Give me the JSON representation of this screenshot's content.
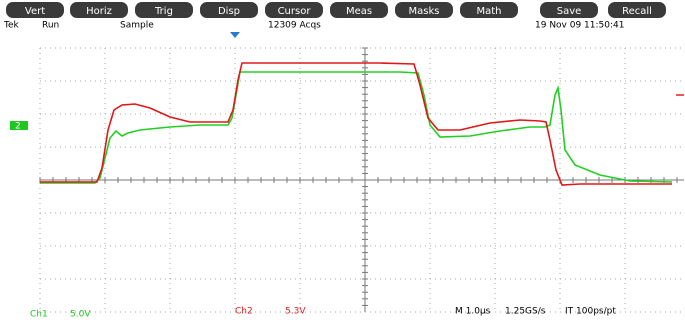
{
  "menu": [
    "Vert",
    "Horiz",
    "Trig",
    "Disp",
    "Cursor",
    "Meas",
    "Masks",
    "Math",
    "Save",
    "Recall"
  ],
  "status": {
    "brand": "Tek",
    "state": "Run",
    "mode": "Sample",
    "acqs": "12309 Acqs",
    "datetime": "19 Nov 09 11:50:41"
  },
  "marker": "2",
  "readout": {
    "ch1": "Ch1",
    "ch1_scale": "5.0V",
    "ch2": "Ch2",
    "ch2_scale": "5.3V",
    "timebase": "M 1.0µs",
    "rate": "1.25GS/s",
    "resolution": "IT 100ps/pt"
  }
}
